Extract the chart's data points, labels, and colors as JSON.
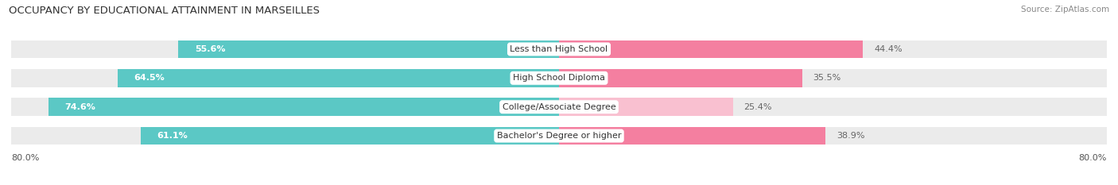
{
  "title": "OCCUPANCY BY EDUCATIONAL ATTAINMENT IN MARSEILLES",
  "source": "Source: ZipAtlas.com",
  "categories": [
    "Less than High School",
    "High School Diploma",
    "College/Associate Degree",
    "Bachelor's Degree or higher"
  ],
  "owner_values": [
    55.6,
    64.5,
    74.6,
    61.1
  ],
  "renter_values": [
    44.4,
    35.5,
    25.4,
    38.9
  ],
  "owner_color": "#5BC8C5",
  "renter_color": "#F47FA0",
  "renter_color_light": "#F9C0D0",
  "bar_bg_color": "#EBEBEB",
  "title_fontsize": 9.5,
  "source_fontsize": 7.5,
  "bar_label_fontsize": 8,
  "category_fontsize": 8,
  "legend_fontsize": 8.5,
  "background_color": "#FFFFFF",
  "x_min": -100,
  "x_max": 100
}
